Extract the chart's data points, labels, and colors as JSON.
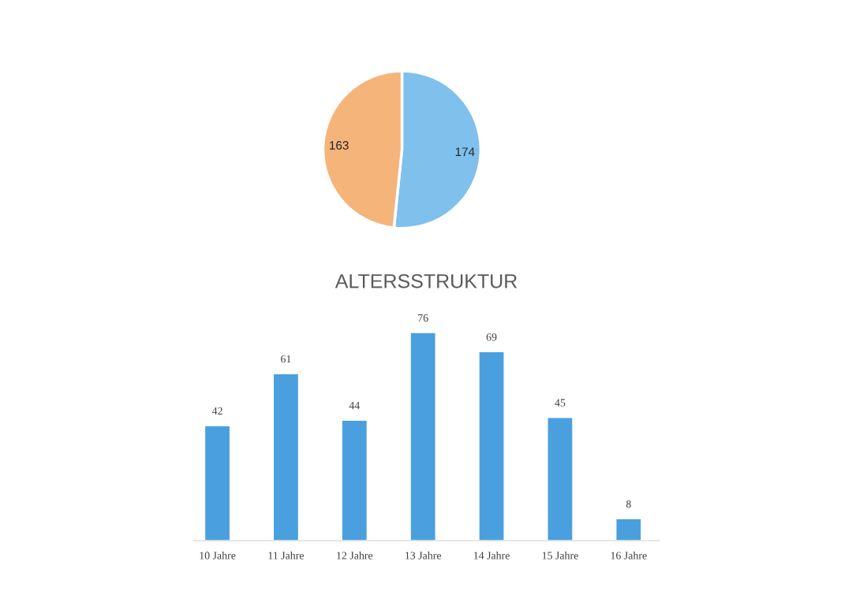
{
  "chart_data": [
    {
      "type": "pie",
      "categories": [
        null,
        null
      ],
      "values": [
        174,
        163
      ],
      "colors": [
        "#7fc0ec",
        "#f5b47a"
      ],
      "data_labels": true
    },
    {
      "type": "bar",
      "title": "ALTERSSTRUKTUR",
      "categories": [
        "10 Jahre",
        "11 Jahre",
        "12 Jahre",
        "13 Jahre",
        "14 Jahre",
        "15 Jahre",
        "16 Jahre"
      ],
      "values": [
        42,
        61,
        44,
        76,
        69,
        45,
        8
      ],
      "color": "#4aa0de",
      "data_labels": true,
      "tick_labels": "x"
    }
  ]
}
